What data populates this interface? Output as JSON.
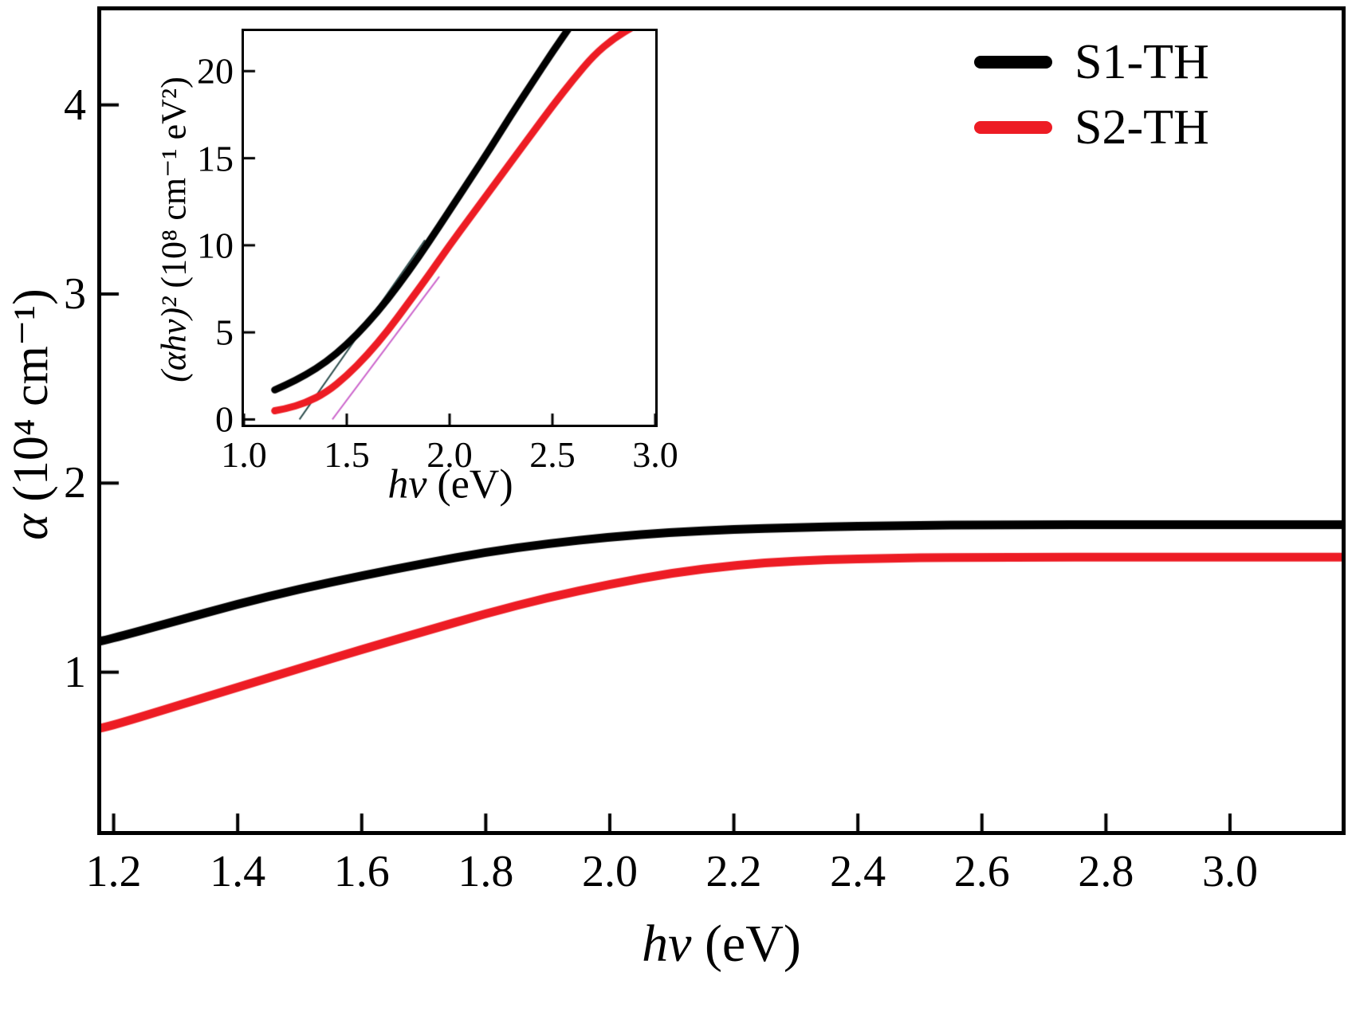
{
  "figure": {
    "legend": {
      "entries": [
        {
          "label": "S1-TH",
          "color": "#000000"
        },
        {
          "label": "S2-TH",
          "color": "#ed1c24"
        }
      ]
    }
  },
  "colors": {
    "s1": "#000000",
    "s2": "#ed1c24",
    "axis": "#000000",
    "fit_line_1": "#2f4f4f",
    "fit_line_2": "#cc66cc"
  },
  "chart_data": [
    {
      "type": "line",
      "title": "",
      "xlabel_italic": "hv",
      "xlabel_units": " (eV)",
      "ylabel_symbol": "α",
      "ylabel_units": " (10⁴ cm⁻¹)",
      "xlim": [
        1.18,
        3.18
      ],
      "ylim": [
        0.16,
        4.5
      ],
      "grid": false,
      "xticks": [
        1.2,
        1.4,
        1.6,
        1.8,
        2.0,
        2.2,
        2.4,
        2.6,
        2.8,
        3.0
      ],
      "xtick_labels": [
        "1.2",
        "1.4",
        "1.6",
        "1.8",
        "2.0",
        "2.2",
        "2.4",
        "2.6",
        "2.8",
        "3.0"
      ],
      "yticks": [
        1,
        2,
        3,
        4
      ],
      "ytick_labels": [
        "1",
        "2",
        "3",
        "4"
      ],
      "series": [
        {
          "name": "S1-TH",
          "color": "#000000",
          "x": [
            1.18,
            1.2,
            1.3,
            1.4,
            1.5,
            1.6,
            1.7,
            1.8,
            1.9,
            2.0,
            2.1,
            2.2,
            2.3,
            2.4,
            2.5,
            2.6,
            2.7,
            2.8,
            2.9,
            3.0,
            3.1,
            3.18
          ],
          "y": [
            1.165,
            1.18,
            1.27,
            1.36,
            1.44,
            1.51,
            1.575,
            1.635,
            1.68,
            1.715,
            1.74,
            1.755,
            1.765,
            1.772,
            1.776,
            1.779,
            1.78,
            1.78,
            1.78,
            1.78,
            1.78,
            1.78
          ]
        },
        {
          "name": "S2-TH",
          "color": "#ed1c24",
          "x": [
            1.18,
            1.2,
            1.3,
            1.4,
            1.5,
            1.6,
            1.7,
            1.8,
            1.9,
            2.0,
            2.1,
            2.2,
            2.3,
            2.4,
            2.5,
            2.6,
            2.7,
            2.8,
            2.9,
            3.0,
            3.1,
            3.18
          ],
          "y": [
            0.705,
            0.72,
            0.82,
            0.92,
            1.02,
            1.12,
            1.215,
            1.31,
            1.395,
            1.465,
            1.525,
            1.565,
            1.59,
            1.6,
            1.605,
            1.607,
            1.608,
            1.608,
            1.608,
            1.608,
            1.608,
            1.608
          ]
        }
      ]
    },
    {
      "type": "line",
      "title": "",
      "xlabel_italic": "hv",
      "xlabel_units": " (eV)",
      "ylabel_formula": "(αhv)²",
      "ylabel_units": " (10⁸ cm⁻¹ eV²)",
      "xlim": [
        1.0,
        3.0
      ],
      "ylim": [
        -0.3,
        22.3
      ],
      "grid": false,
      "xticks": [
        1.0,
        1.5,
        2.0,
        2.5,
        3.0
      ],
      "xtick_labels": [
        "1.0",
        "1.5",
        "2.0",
        "2.5",
        "3.0"
      ],
      "yticks": [
        0,
        5,
        10,
        15,
        20
      ],
      "ytick_labels": [
        "0",
        "5",
        "10",
        "15",
        "20"
      ],
      "fit_lines": [
        {
          "x1": 1.27,
          "y1": 0,
          "x2": 1.88,
          "y2": 10.3,
          "color": "#2f4f4f",
          "width": 2
        },
        {
          "x1": 1.43,
          "y1": 0,
          "x2": 1.95,
          "y2": 8.2,
          "color": "#cc66cc",
          "width": 2
        }
      ],
      "series": [
        {
          "name": "S1-TH",
          "color": "#000000",
          "x": [
            1.15,
            1.2,
            1.3,
            1.4,
            1.5,
            1.6,
            1.7,
            1.8,
            1.9,
            2.0,
            2.1,
            2.2,
            2.3,
            2.4,
            2.5,
            2.6,
            2.7
          ],
          "y": [
            1.7,
            1.95,
            2.55,
            3.3,
            4.3,
            5.5,
            6.9,
            8.5,
            10.2,
            12.0,
            13.8,
            15.6,
            17.5,
            19.3,
            21.1,
            22.8,
            24.5
          ]
        },
        {
          "name": "S2-TH",
          "color": "#ed1c24",
          "x": [
            1.15,
            1.2,
            1.3,
            1.4,
            1.5,
            1.6,
            1.7,
            1.8,
            1.9,
            2.0,
            2.1,
            2.2,
            2.3,
            2.4,
            2.5,
            2.6,
            2.7,
            2.8,
            2.9,
            3.0
          ],
          "y": [
            0.5,
            0.6,
            0.95,
            1.55,
            2.5,
            3.7,
            5.1,
            6.7,
            8.3,
            10.0,
            11.6,
            13.2,
            14.8,
            16.4,
            18.0,
            19.5,
            20.9,
            21.9,
            22.6,
            23.2
          ]
        }
      ]
    }
  ]
}
